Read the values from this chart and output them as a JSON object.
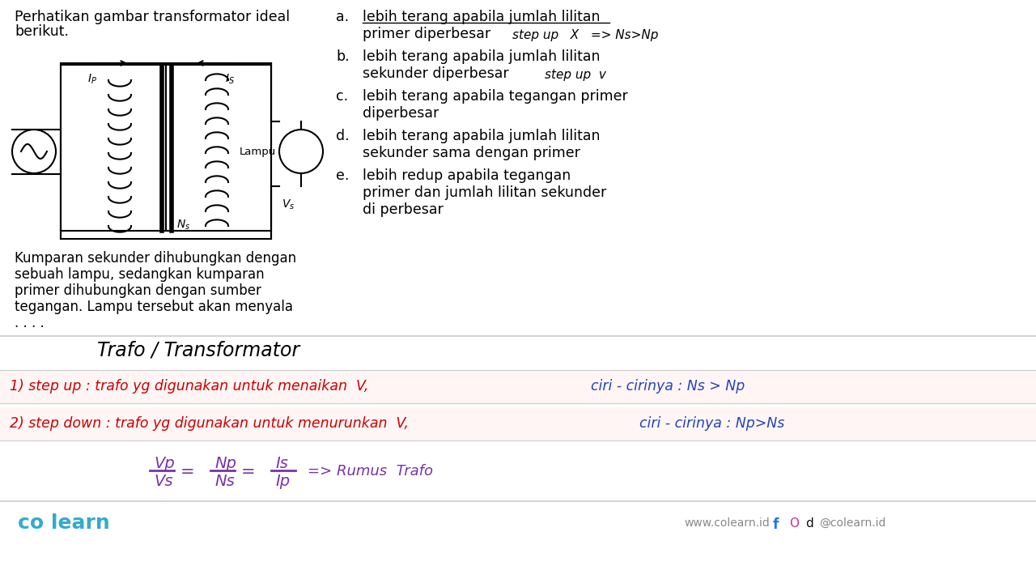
{
  "bg_color": "#ffffff",
  "title_text1": "Perhatikan gambar transformator ideal",
  "title_text2": "berikut.",
  "desc_lines": [
    "Kumparan sekunder dihubungkan dengan",
    "sebuah lampu, sedangkan kumparan",
    "primer dihubungkan dengan sumber",
    "tegangan. Lampu tersebut akan menyala",
    ". . . ."
  ],
  "opt_a_line1": "lebih terang apabila jumlah lilitan",
  "opt_a_line2": "primer diperbesar",
  "opt_a_hw": "step up   X   => Ns>Np",
  "opt_b_line1": "lebih terang apabila jumlah lilitan",
  "opt_b_line2": "sekunder diperbesar",
  "opt_b_hw": "step up  v",
  "opt_c_line1": "lebih terang apabila tegangan primer",
  "opt_c_line2": "diperbesar",
  "opt_d_line1": "lebih terang apabila jumlah lilitan",
  "opt_d_line2": "sekunder sama dengan primer",
  "opt_e_line1": "lebih redup apabila tegangan",
  "opt_e_line2": "primer dan jumlah lilitan sekunder",
  "opt_e_line3": "di perbesar",
  "hw_title": "Trafo / Transformator",
  "row1_red": "1) step up : trafo yg digunakan untuk menaikan  V,",
  "row1_blue": "ciri - cirinya : Ns > Np",
  "row2_red": "2) step down : trafo yg digunakan untuk menurunkan  V,",
  "row2_blue": "ciri - cirinya : Np>Ns",
  "frac_num": [
    "Vp",
    "Np",
    "Is"
  ],
  "frac_den": [
    "Vs",
    "Ns",
    "Ip"
  ],
  "arrow_rumus": "=> Rumus  Trafo",
  "footer_left": "co learn",
  "footer_web": "www.colearn.id",
  "footer_social": "@colearn.id",
  "color_red": "#cc0000",
  "color_blue": "#2244bb",
  "color_purple": "#7733aa",
  "color_teal": "#33aacc",
  "color_black": "#111111",
  "color_gray": "#888888",
  "color_lightgray": "#cccccc"
}
